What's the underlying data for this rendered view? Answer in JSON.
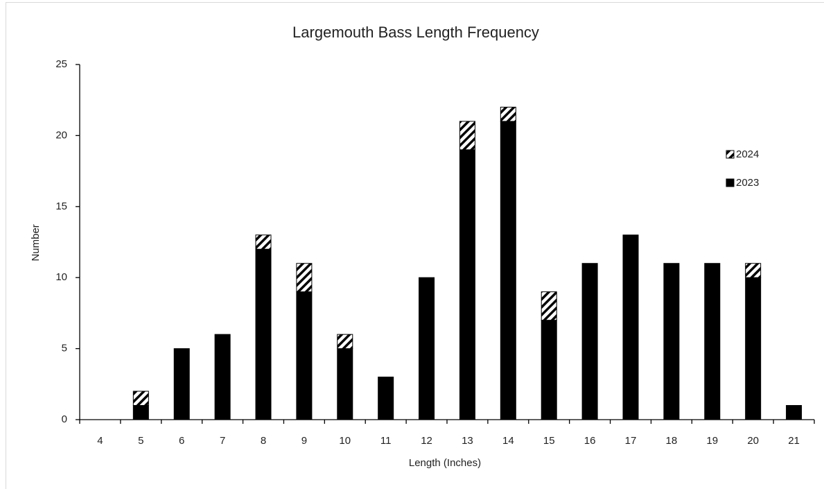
{
  "chart_data": {
    "type": "stacked-bar",
    "title": "Largemouth Bass Length Frequency",
    "x_label": "Length (Inches)",
    "y_label": "Number",
    "categories": [
      "4",
      "5",
      "6",
      "7",
      "8",
      "9",
      "10",
      "11",
      "12",
      "13",
      "14",
      "15",
      "16",
      "17",
      "18",
      "19",
      "20",
      "21"
    ],
    "series": [
      {
        "name": "2023",
        "color": "#000000",
        "values": [
          0,
          1,
          5,
          6,
          12,
          9,
          5,
          3,
          10,
          19,
          21,
          7,
          11,
          13,
          11,
          11,
          10,
          1
        ]
      },
      {
        "name": "2024",
        "color": "#000000",
        "pattern": "hatch",
        "values": [
          0,
          1,
          0,
          0,
          1,
          2,
          1,
          0,
          0,
          2,
          1,
          2,
          0,
          0,
          0,
          0,
          1,
          0
        ]
      }
    ],
    "ylim": [
      0,
      25
    ],
    "yticks": [
      0,
      5,
      10,
      15,
      20,
      25
    ],
    "grid": false,
    "legend": "right"
  }
}
